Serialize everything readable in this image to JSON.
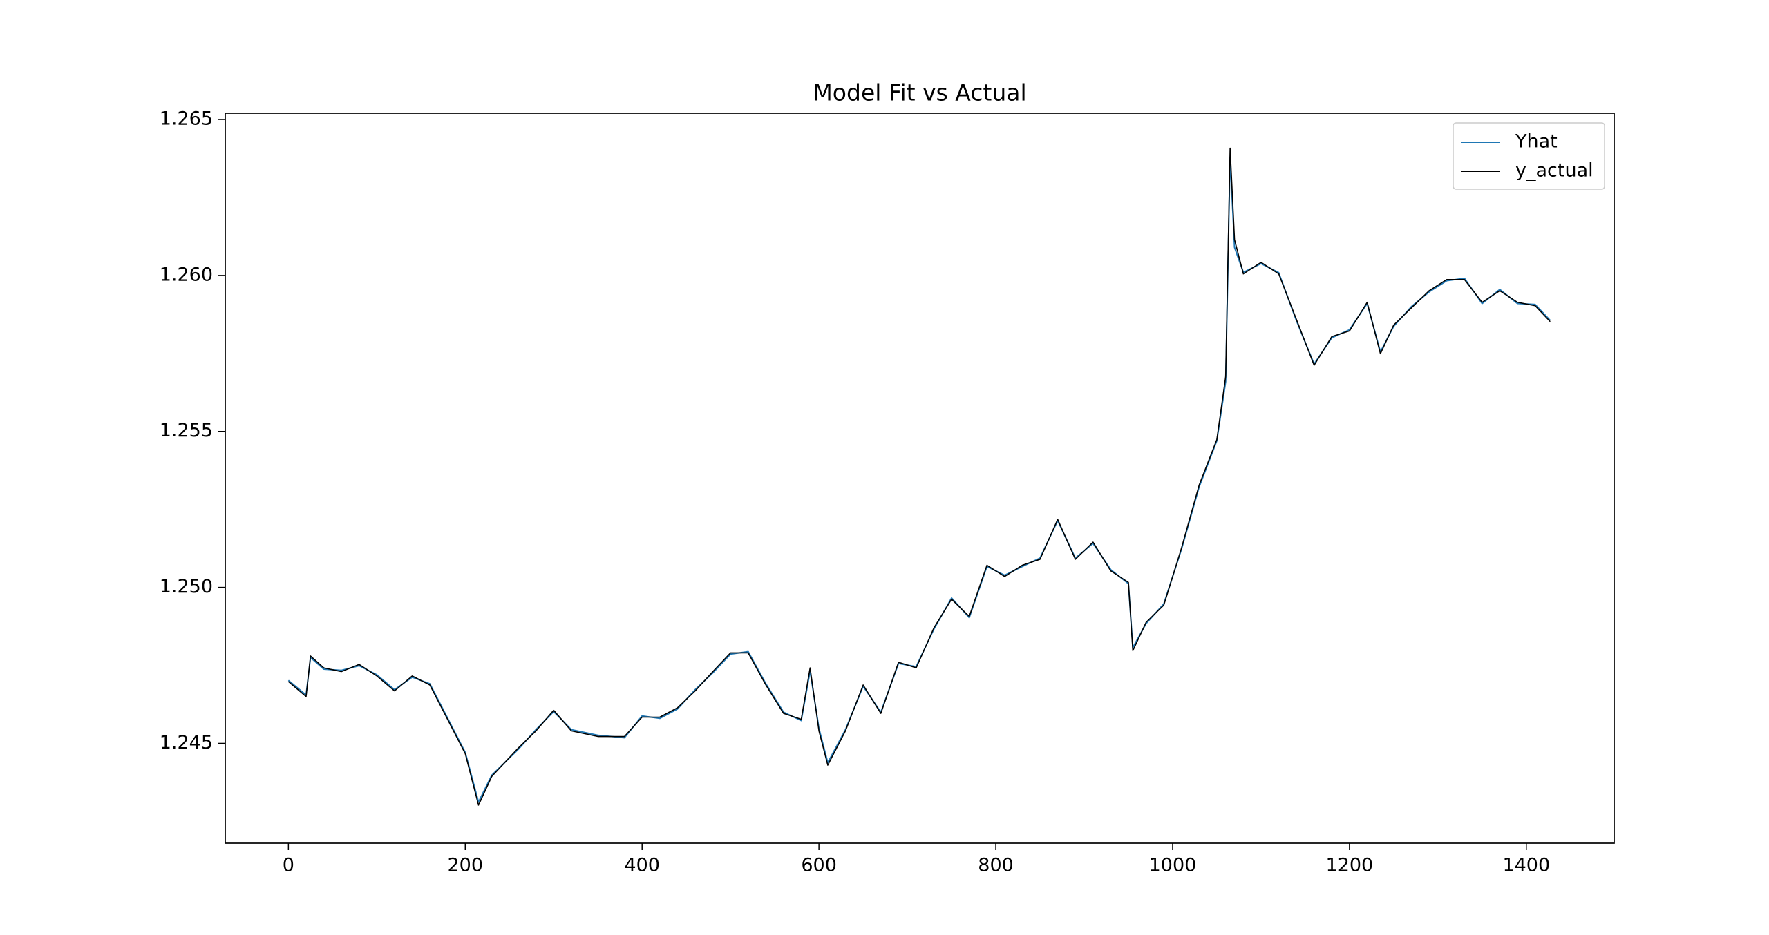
{
  "chart_data": {
    "type": "line",
    "title": "Model Fit vs Actual",
    "x": [
      0,
      20,
      25,
      40,
      60,
      80,
      100,
      120,
      140,
      160,
      180,
      200,
      215,
      230,
      260,
      280,
      300,
      320,
      350,
      380,
      400,
      420,
      440,
      460,
      480,
      500,
      520,
      540,
      560,
      580,
      590,
      600,
      610,
      630,
      650,
      670,
      690,
      710,
      730,
      750,
      770,
      790,
      810,
      830,
      850,
      870,
      890,
      910,
      930,
      950,
      955,
      970,
      990,
      1010,
      1030,
      1050,
      1060,
      1065,
      1070,
      1080,
      1100,
      1120,
      1140,
      1160,
      1180,
      1200,
      1220,
      1235,
      1250,
      1270,
      1290,
      1310,
      1330,
      1350,
      1370,
      1390,
      1410,
      1427
    ],
    "series": [
      {
        "name": "Yhat",
        "color": "#1f77b4",
        "values": [
          1.24702,
          1.24655,
          1.24775,
          1.24738,
          1.24734,
          1.24749,
          1.2472,
          1.24672,
          1.24712,
          1.24691,
          1.24581,
          1.24471,
          1.24312,
          1.24398,
          1.24481,
          1.24544,
          1.24602,
          1.24544,
          1.24526,
          1.24518,
          1.24588,
          1.2458,
          1.2461,
          1.24672,
          1.24726,
          1.24786,
          1.24794,
          1.24691,
          1.246,
          1.24573,
          1.24732,
          1.24548,
          1.24438,
          1.24544,
          1.24683,
          1.246,
          1.24756,
          1.24746,
          1.24866,
          1.24966,
          1.24903,
          1.25067,
          1.25039,
          1.25067,
          1.25094,
          1.25214,
          1.25094,
          1.25141,
          1.25057,
          1.25012,
          1.24807,
          1.24884,
          1.24947,
          1.25122,
          1.25322,
          1.2547,
          1.2566,
          1.2638,
          1.2609,
          1.2601,
          1.26038,
          1.26009,
          1.25855,
          1.25716,
          1.258,
          1.25826,
          1.2591,
          1.25755,
          1.25837,
          1.259,
          1.25947,
          1.25983,
          1.25991,
          1.2591,
          1.25955,
          1.2591,
          1.25907,
          1.25856
        ]
      },
      {
        "name": "y_actual",
        "color": "#000000",
        "values": [
          1.24698,
          1.2465,
          1.2478,
          1.24742,
          1.2473,
          1.24753,
          1.24716,
          1.24668,
          1.24716,
          1.24687,
          1.24577,
          1.24467,
          1.24302,
          1.24394,
          1.24485,
          1.2454,
          1.24606,
          1.2454,
          1.24522,
          1.24522,
          1.24584,
          1.24584,
          1.24614,
          1.24668,
          1.2473,
          1.2479,
          1.2479,
          1.24687,
          1.24596,
          1.24577,
          1.24742,
          1.2454,
          1.2443,
          1.2454,
          1.24687,
          1.24596,
          1.2476,
          1.24742,
          1.2487,
          1.24962,
          1.24907,
          1.25071,
          1.25035,
          1.25071,
          1.2509,
          1.25218,
          1.2509,
          1.25145,
          1.25053,
          1.25016,
          1.24797,
          1.24888,
          1.24943,
          1.25126,
          1.25328,
          1.25474,
          1.25676,
          1.26408,
          1.26115,
          1.26005,
          1.26042,
          1.26005,
          1.25859,
          1.25712,
          1.25804,
          1.25822,
          1.25914,
          1.25749,
          1.25841,
          1.25896,
          1.25951,
          1.25987,
          1.25987,
          1.25914,
          1.25951,
          1.25914,
          1.25903,
          1.25852
        ]
      }
    ],
    "xlim": [
      -71.4,
      1499.4
    ],
    "ylim": [
      1.2418,
      1.2652
    ],
    "xticks": [
      0,
      200,
      400,
      600,
      800,
      1000,
      1200,
      1400
    ],
    "yticks": [
      1.245,
      {
        "value": 1.25,
        "label": "1.250"
      },
      1.255,
      {
        "value": 1.26,
        "label": "1.260"
      },
      1.265
    ],
    "legend": "upper right"
  }
}
